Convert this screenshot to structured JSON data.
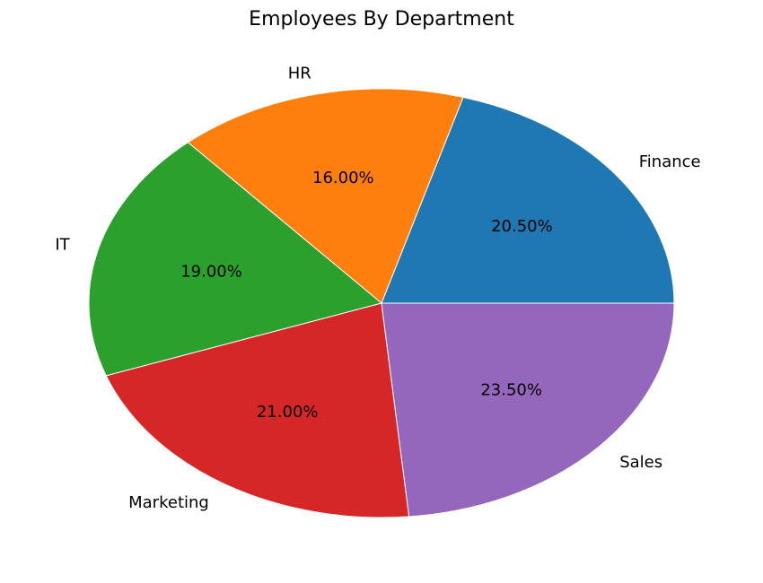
{
  "chart_data": {
    "type": "pie",
    "title": "Employees By Department",
    "categories": [
      "Finance",
      "HR",
      "IT",
      "Marketing",
      "Sales"
    ],
    "values": [
      20.5,
      16.0,
      19.0,
      21.0,
      23.5
    ],
    "value_labels": [
      "20.50%",
      "16.00%",
      "19.00%",
      "21.00%",
      "23.50%"
    ],
    "colors": [
      "#1f77b4",
      "#ff7f0e",
      "#2ca02c",
      "#d62728",
      "#9467bd"
    ],
    "start_angle_deg": 0,
    "direction": "counterclockwise",
    "legend": "none"
  }
}
